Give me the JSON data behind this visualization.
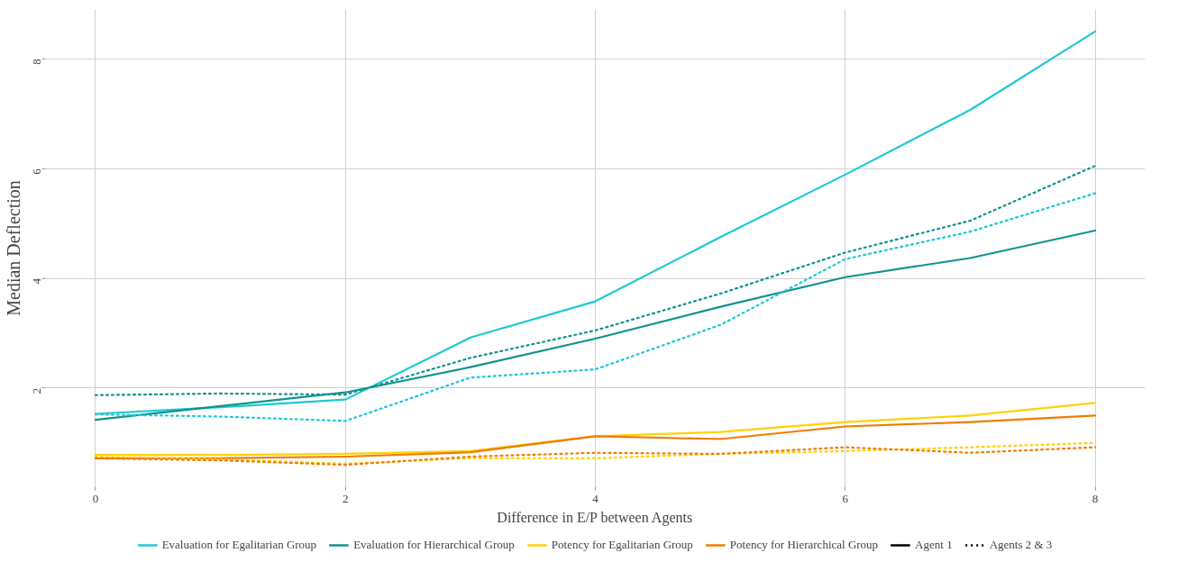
{
  "chart_data": {
    "type": "line",
    "xlabel": "Difference in E/P between Agents",
    "ylabel": "Median Deflection",
    "x": [
      0,
      1,
      2,
      3,
      4,
      5,
      6,
      7,
      8
    ],
    "xlim": [
      -0.4,
      8.4
    ],
    "ylim": [
      0.2,
      8.9
    ],
    "xticks": [
      0,
      2,
      4,
      6,
      8
    ],
    "yticks": [
      2,
      4,
      6,
      8
    ],
    "grid": true,
    "legend": "bottom",
    "marker": "none",
    "annotations": [
      "Agent 1",
      "Agents 2 & 3"
    ],
    "series": [
      {
        "name": "Evaluation for Egalitarian Group",
        "color": "#1fc8d4",
        "line_style": "solid",
        "values": [
          1.53,
          1.65,
          1.79,
          2.92,
          3.58,
          4.75,
          5.89,
          7.07,
          8.5
        ]
      },
      {
        "name": "Evaluation for Hierarchical Group",
        "color": "#11938f",
        "line_style": "solid",
        "values": [
          1.42,
          1.67,
          1.92,
          2.38,
          2.9,
          3.48,
          4.02,
          4.37,
          4.87
        ]
      },
      {
        "name": "Potency for Egalitarian Group",
        "color": "#ffd200",
        "line_style": "solid",
        "values": [
          0.78,
          0.78,
          0.8,
          0.85,
          1.12,
          1.2,
          1.38,
          1.5,
          1.73
        ]
      },
      {
        "name": "Potency for Hierarchical Group",
        "color": "#f07c00",
        "line_style": "solid",
        "values": [
          0.72,
          0.72,
          0.75,
          0.83,
          1.12,
          1.07,
          1.3,
          1.38,
          1.5
        ]
      },
      {
        "color": "#1fc8d4",
        "line_style": "dotted",
        "values": [
          1.52,
          1.48,
          1.4,
          2.19,
          2.34,
          3.15,
          4.35,
          4.85,
          5.55
        ]
      },
      {
        "color": "#11938f",
        "line_style": "dotted",
        "values": [
          1.87,
          1.9,
          1.88,
          2.55,
          3.05,
          3.72,
          4.47,
          5.05,
          6.05
        ]
      },
      {
        "color": "#ffd200",
        "line_style": "dotted",
        "values": [
          0.75,
          0.7,
          0.62,
          0.72,
          0.72,
          0.8,
          0.85,
          0.92,
          1.0
        ]
      },
      {
        "color": "#f07c00",
        "line_style": "dotted",
        "values": [
          0.72,
          0.68,
          0.6,
          0.75,
          0.82,
          0.8,
          0.92,
          0.82,
          0.92
        ]
      }
    ]
  }
}
